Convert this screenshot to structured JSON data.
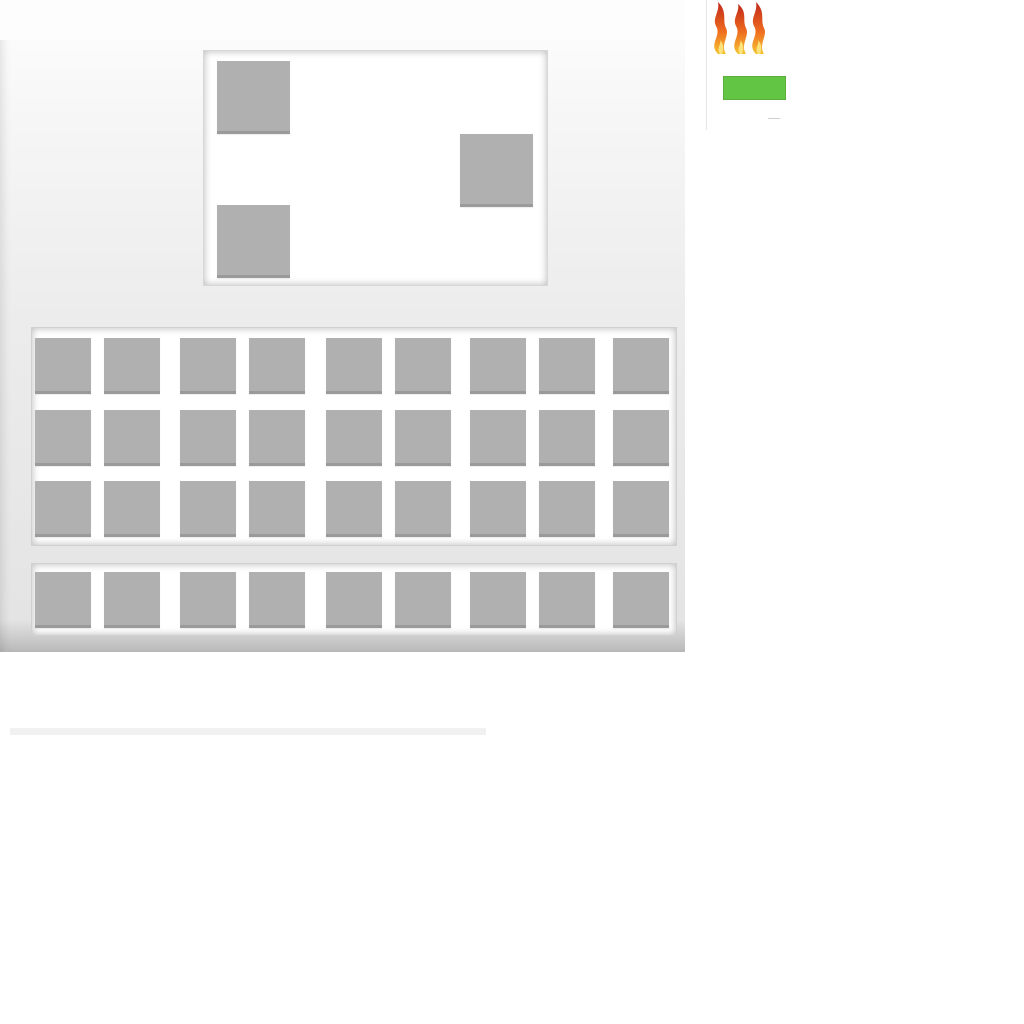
{
  "crafting": {
    "slots": [
      "filled",
      "filled",
      "filled"
    ]
  },
  "inventory": {
    "rows": 3,
    "columns": 9
  },
  "hotbar": {
    "columns": 9
  },
  "status": {
    "effect_icon": "fire-icon",
    "health_fraction": 1.0,
    "health_color": "#63c544"
  },
  "colors": {
    "slot": "#b0b0b0",
    "panel": "#ececec"
  }
}
